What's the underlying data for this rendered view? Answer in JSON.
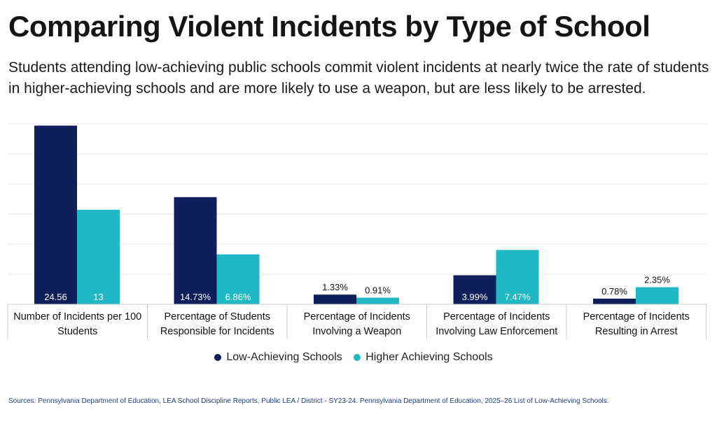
{
  "title": "Comparing Violent Incidents by Type of School",
  "subtitle": "Students attending low-achieving public schools commit violent incidents at nearly twice the rate of students in higher-achieving schools and are more likely to use a weapon, but are less likely to be arrested.",
  "source": "Sources: Pennsylvania Department of Education, LEA School Discipline Reports, Public LEA / District - SY23-24. Pennsylvania Department of Education, 2025–26 List of Low-Achieving Schools.",
  "colors": {
    "low": "#0f1f5c",
    "high": "#1fb8c4",
    "grid": "#e6e6e6",
    "axis": "#cccccc"
  },
  "chart_data": {
    "type": "bar",
    "title": "Comparing Violent Incidents by Type of School",
    "categories": [
      [
        "Number of Incidents per 100",
        "Students"
      ],
      [
        "Percentage of Students",
        "Responsible for Incidents"
      ],
      [
        "Percentage of Incidents",
        "Involving a Weapon"
      ],
      [
        "Percentage of Incidents",
        "Involving Law Enforcement"
      ],
      [
        "Percentage of Incidents",
        "Resulting in Arrest"
      ]
    ],
    "series": [
      {
        "name": "Low-Achieving Schools",
        "values": [
          24.56,
          14.73,
          1.33,
          3.99,
          0.78
        ],
        "labels": [
          "24.56",
          "14.73%",
          "1.33%",
          "3.99%",
          "0.78%"
        ]
      },
      {
        "name": "Higher Achieving Schools",
        "values": [
          13,
          6.86,
          0.91,
          7.47,
          2.35
        ],
        "labels": [
          "13",
          "6.86%",
          "0.91%",
          "7.47%",
          "2.35%"
        ]
      }
    ],
    "ylim": [
      0,
      25
    ],
    "grid": true,
    "legend": "bottom-center",
    "xlabel": "",
    "ylabel": ""
  }
}
